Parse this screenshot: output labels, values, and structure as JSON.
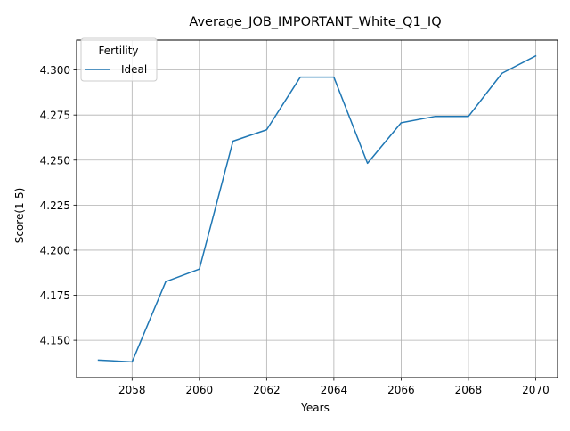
{
  "chart_data": {
    "type": "line",
    "title": "Average_JOB_IMPORTANT_White_Q1_IQ",
    "xlabel": "Years",
    "ylabel": "Score(1-5)",
    "x": [
      2057,
      2058,
      2059,
      2060,
      2061,
      2062,
      2063,
      2064,
      2065,
      2066,
      2067,
      2068,
      2069,
      2070
    ],
    "series": [
      {
        "name": "Ideal",
        "color": "#1f77b4",
        "values": [
          4.139,
          4.138,
          4.1825,
          4.1895,
          4.2605,
          4.2668,
          4.296,
          4.296,
          4.2482,
          4.2707,
          4.2742,
          4.2742,
          4.2982,
          4.3078
        ]
      }
    ],
    "xlim": [
      2056.35,
      2070.65
    ],
    "ylim": [
      4.1293,
      4.3166
    ],
    "xticks": [
      2058,
      2060,
      2062,
      2064,
      2066,
      2068,
      2070
    ],
    "yticks": [
      4.15,
      4.175,
      4.2,
      4.225,
      4.25,
      4.275,
      4.3
    ],
    "ytick_labels": [
      "4.150",
      "4.175",
      "4.200",
      "4.225",
      "4.250",
      "4.275",
      "4.300"
    ],
    "grid": true,
    "legend": {
      "title": "Fertility",
      "placement": "top-left"
    }
  }
}
